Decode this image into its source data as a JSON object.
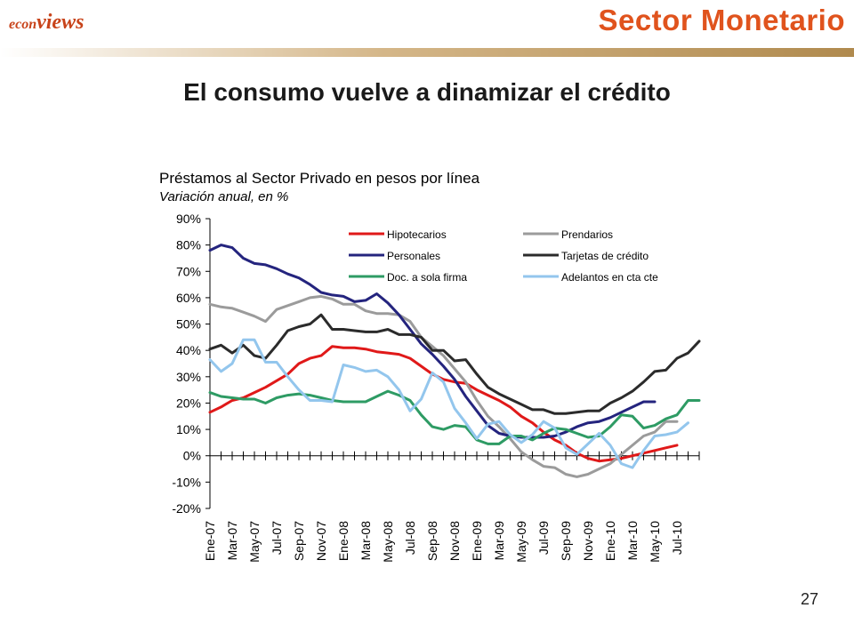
{
  "header": {
    "logo_part1": "econ",
    "logo_part2": "views",
    "section": "Sector Monetario"
  },
  "slide": {
    "title": "El consumo vuelve a dinamizar el crédito",
    "page_number": "27"
  },
  "colors": {
    "accent": "#e0531d",
    "header_bar": "#b08a4e"
  },
  "chart_data": {
    "type": "line",
    "title": "Préstamos al Sector Privado en pesos por línea",
    "subtitle": "Variación anual, en %",
    "ylim": [
      -20,
      90
    ],
    "yticks": [
      "90%",
      "80%",
      "70%",
      "60%",
      "50%",
      "40%",
      "30%",
      "20%",
      "10%",
      "0%",
      "-10%",
      "-20%"
    ],
    "x_labels": [
      "Ene-07",
      "Mar-07",
      "May-07",
      "Jul-07",
      "Sep-07",
      "Nov-07",
      "Ene-08",
      "Mar-08",
      "May-08",
      "Jul-08",
      "Sep-08",
      "Nov-08",
      "Ene-09",
      "Mar-09",
      "May-09",
      "Jul-09",
      "Sep-09",
      "Nov-09",
      "Ene-10",
      "Mar-10",
      "May-10",
      "Jul-10"
    ],
    "legend_position": "top-right",
    "grid": false,
    "series": [
      {
        "name": "Hipotecarios",
        "color": "#e01919",
        "values": [
          16.5,
          18.5,
          21,
          22,
          24,
          26,
          28.5,
          31,
          35,
          37,
          38,
          41.5,
          41,
          41,
          40.5,
          39.5,
          39,
          38.5,
          37,
          34,
          31,
          29,
          28,
          27.5,
          25,
          23,
          21,
          18.5,
          15,
          12.5,
          9,
          6,
          4,
          1,
          -1,
          -2,
          -1.5,
          -1,
          0,
          1,
          2,
          3,
          4
        ]
      },
      {
        "name": "Prendarios",
        "color": "#9b9b9b",
        "values": [
          57.5,
          56.5,
          56,
          54.5,
          53,
          51,
          55.5,
          57,
          58.5,
          60,
          60.5,
          59.5,
          57.5,
          57.5,
          55,
          54,
          54,
          53.5,
          51,
          45,
          41.5,
          38,
          33,
          28,
          21,
          15,
          11,
          6.5,
          1.5,
          -1.5,
          -4,
          -4.5,
          -7,
          -8,
          -7,
          -5,
          -3,
          0.5,
          4,
          7.5,
          9,
          13,
          13
        ]
      },
      {
        "name": "Personales",
        "color": "#24247e",
        "values": [
          78,
          80,
          79,
          75,
          73,
          72.5,
          71,
          69,
          67.5,
          65,
          62,
          61,
          60.5,
          58.5,
          59,
          61.5,
          58,
          53.5,
          48,
          42.5,
          38.5,
          34,
          29,
          22.5,
          17,
          11.5,
          8.5,
          7.5,
          7,
          7,
          7,
          7.5,
          9,
          11,
          12.5,
          13,
          14.5,
          16.5,
          18.5,
          20.5,
          20.5
        ]
      },
      {
        "name": "Tarjetas de crédito",
        "color": "#2b2b2b",
        "values": [
          40.5,
          42,
          39,
          42,
          38,
          37,
          42,
          47.5,
          49,
          50,
          53.5,
          48,
          48,
          47.5,
          47,
          47,
          48,
          46,
          46,
          45,
          40,
          40,
          36,
          36.5,
          31,
          26,
          23.5,
          21.5,
          19.5,
          17.5,
          17.5,
          16,
          16,
          16.5,
          17,
          17,
          20,
          22,
          24.5,
          28,
          32,
          32.5,
          37,
          39,
          43.5
        ]
      },
      {
        "name": "Doc. a sola firma",
        "color": "#2e9b64",
        "values": [
          24,
          22.5,
          22,
          21.5,
          21.5,
          20,
          22,
          23,
          23.5,
          23,
          22,
          21,
          20.5,
          20.5,
          20.5,
          22.5,
          24.5,
          23,
          21,
          15.5,
          11,
          10,
          11.5,
          11,
          6,
          4.5,
          4.5,
          7.5,
          7.5,
          6,
          8.5,
          10.5,
          10,
          8.5,
          7,
          7.5,
          11,
          15.5,
          15,
          10.5,
          11.5,
          14,
          15.5,
          21,
          21
        ]
      },
      {
        "name": "Adelantos en cta cte",
        "color": "#93c6ed",
        "values": [
          36.5,
          32,
          35,
          44,
          44,
          35.5,
          35.5,
          30,
          25,
          21,
          21,
          20.5,
          34.5,
          33.5,
          32,
          32.5,
          30,
          25,
          17,
          21.5,
          31.5,
          28,
          18,
          12.5,
          6.5,
          12,
          13,
          8,
          5,
          8,
          13,
          10.5,
          3,
          0.5,
          4.5,
          8.5,
          4,
          -3,
          -4.5,
          2,
          7.5,
          8,
          9,
          12.5
        ]
      }
    ]
  }
}
